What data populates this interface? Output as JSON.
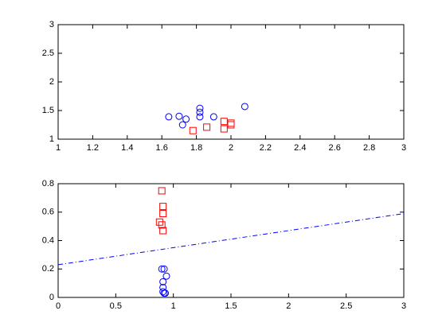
{
  "chart_data": [
    {
      "type": "scatter",
      "xlim": [
        1,
        3
      ],
      "ylim": [
        1,
        3
      ],
      "xticks": [
        1,
        1.2,
        1.4,
        1.6,
        1.8,
        2,
        2.2,
        2.4,
        2.6,
        2.8,
        3
      ],
      "yticks": [
        1,
        1.5,
        2,
        2.5,
        3
      ],
      "series": [
        {
          "color": "#0000ff",
          "marker": "circle",
          "x": [
            1.64,
            1.7,
            1.72,
            1.74,
            1.82,
            1.82,
            1.82,
            1.9,
            2.08
          ],
          "values": [
            1.39,
            1.4,
            1.25,
            1.35,
            1.54,
            1.47,
            1.39,
            1.39,
            1.57
          ]
        },
        {
          "color": "#ff0000",
          "marker": "square",
          "x": [
            1.78,
            1.86,
            1.96,
            1.96,
            2.0,
            2.0
          ],
          "values": [
            1.15,
            1.21,
            1.31,
            1.18,
            1.28,
            1.25
          ]
        }
      ]
    },
    {
      "type": "scatter",
      "xlim": [
        0,
        3
      ],
      "ylim": [
        0,
        0.8
      ],
      "xticks": [
        0,
        0.5,
        1,
        1.5,
        2,
        2.5,
        3
      ],
      "yticks": [
        0,
        0.2,
        0.4,
        0.6,
        0.8
      ],
      "series": [
        {
          "color": "#ff0000",
          "marker": "square",
          "x": [
            0.9,
            0.91,
            0.91,
            0.88,
            0.9,
            0.91
          ],
          "values": [
            0.75,
            0.64,
            0.59,
            0.53,
            0.51,
            0.47
          ]
        },
        {
          "color": "#0000ff",
          "marker": "circle",
          "x": [
            0.9,
            0.92,
            0.94,
            0.91,
            0.91,
            0.91,
            0.92,
            0.93
          ],
          "values": [
            0.2,
            0.2,
            0.15,
            0.11,
            0.07,
            0.04,
            0.03,
            0.03
          ]
        },
        {
          "color": "#0000ff",
          "marker": "none",
          "linestyle": "dashdot",
          "x": [
            0,
            3
          ],
          "values": [
            0.23,
            0.59
          ]
        }
      ]
    }
  ]
}
